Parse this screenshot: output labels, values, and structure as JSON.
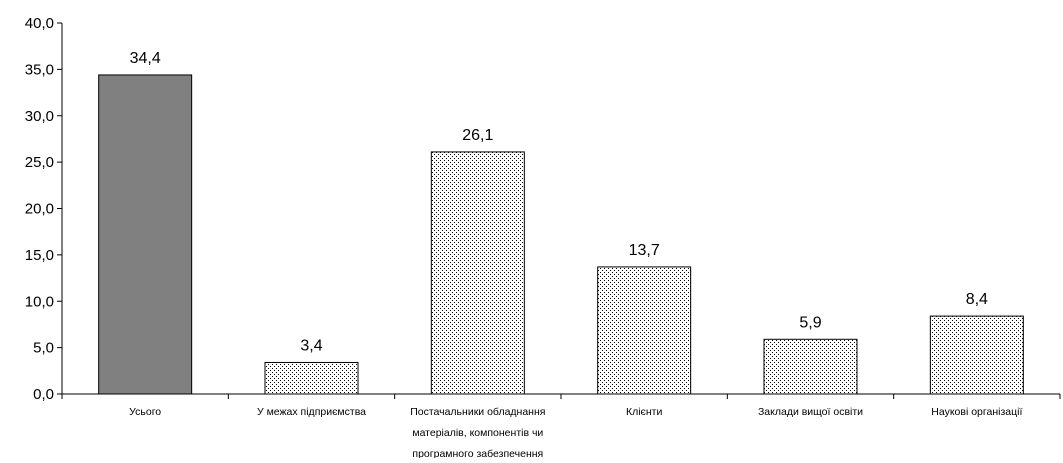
{
  "chart_data": {
    "type": "bar",
    "title": "",
    "xlabel": "",
    "ylabel": "",
    "ylim": [
      0,
      40
    ],
    "y_ticks": [
      "0,0",
      "5,0",
      "10,0",
      "15,0",
      "20,0",
      "25,0",
      "30,0",
      "35,0",
      "40,0"
    ],
    "y_tick_values": [
      0,
      5,
      10,
      15,
      20,
      25,
      30,
      35,
      40
    ],
    "categories": [
      [
        "Усього"
      ],
      [
        "У межах підприємства"
      ],
      [
        "Постачальники обладнання",
        "матеріалів, компонентів  чи",
        "програмного забезпечення"
      ],
      [
        "Клієнти"
      ],
      [
        "Заклади вищої освіти"
      ],
      [
        "Наукові організації"
      ]
    ],
    "values": [
      34.4,
      3.4,
      26.1,
      13.7,
      5.9,
      8.4
    ],
    "value_labels": [
      "34,4",
      "3,4",
      "26,1",
      "13,7",
      "5,9",
      "8,4"
    ],
    "bar_styles": [
      "solid",
      "dotted",
      "dotted",
      "dotted",
      "dotted",
      "dotted"
    ],
    "grid": false,
    "legend": "none"
  },
  "colors": {
    "solid_bar": "#808080",
    "dotted_bar_bg": "#ffffff",
    "dotted_bar_dot": "#000000",
    "axis": "#000000",
    "text": "#000000"
  }
}
